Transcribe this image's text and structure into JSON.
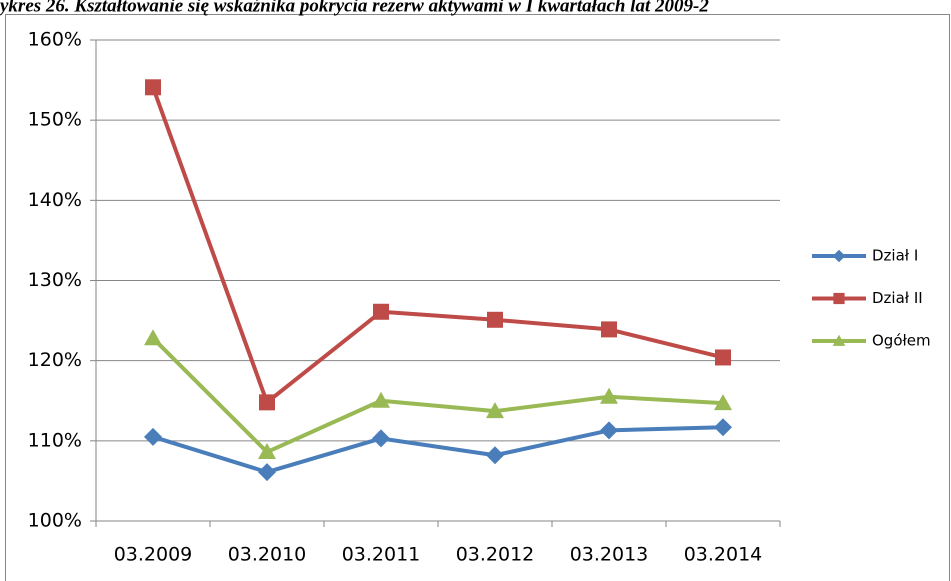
{
  "chart_data": {
    "type": "line",
    "title": "ykres 26. Kształtowanie się wskaźnika pokrycia rezerw aktywami w I kwartałach lat 2009-2",
    "categories": [
      "03.2009",
      "03.2010",
      "03.2011",
      "03.2012",
      "03.2013",
      "03.2014"
    ],
    "series": [
      {
        "name": "Dział I",
        "color": "#4a7ebb",
        "marker": "diamond",
        "values": [
          110.5,
          106.1,
          110.3,
          108.2,
          111.3,
          111.7
        ]
      },
      {
        "name": "Dział II",
        "color": "#be4b48",
        "marker": "square",
        "values": [
          154.1,
          114.8,
          126.1,
          125.1,
          123.9,
          120.4
        ]
      },
      {
        "name": "Ogółem",
        "color": "#98b954",
        "marker": "triangle",
        "values": [
          122.8,
          108.6,
          115.0,
          113.7,
          115.5,
          114.7
        ]
      }
    ],
    "ylim": [
      100,
      160
    ],
    "yticks": [
      {
        "value": 100,
        "label": "100%"
      },
      {
        "value": 110,
        "label": "110%"
      },
      {
        "value": 120,
        "label": "120%"
      },
      {
        "value": 130,
        "label": "130%"
      },
      {
        "value": 140,
        "label": "140%"
      },
      {
        "value": 150,
        "label": "150%"
      },
      {
        "value": 160,
        "label": "160%"
      }
    ],
    "grid": true,
    "legend": "right"
  }
}
